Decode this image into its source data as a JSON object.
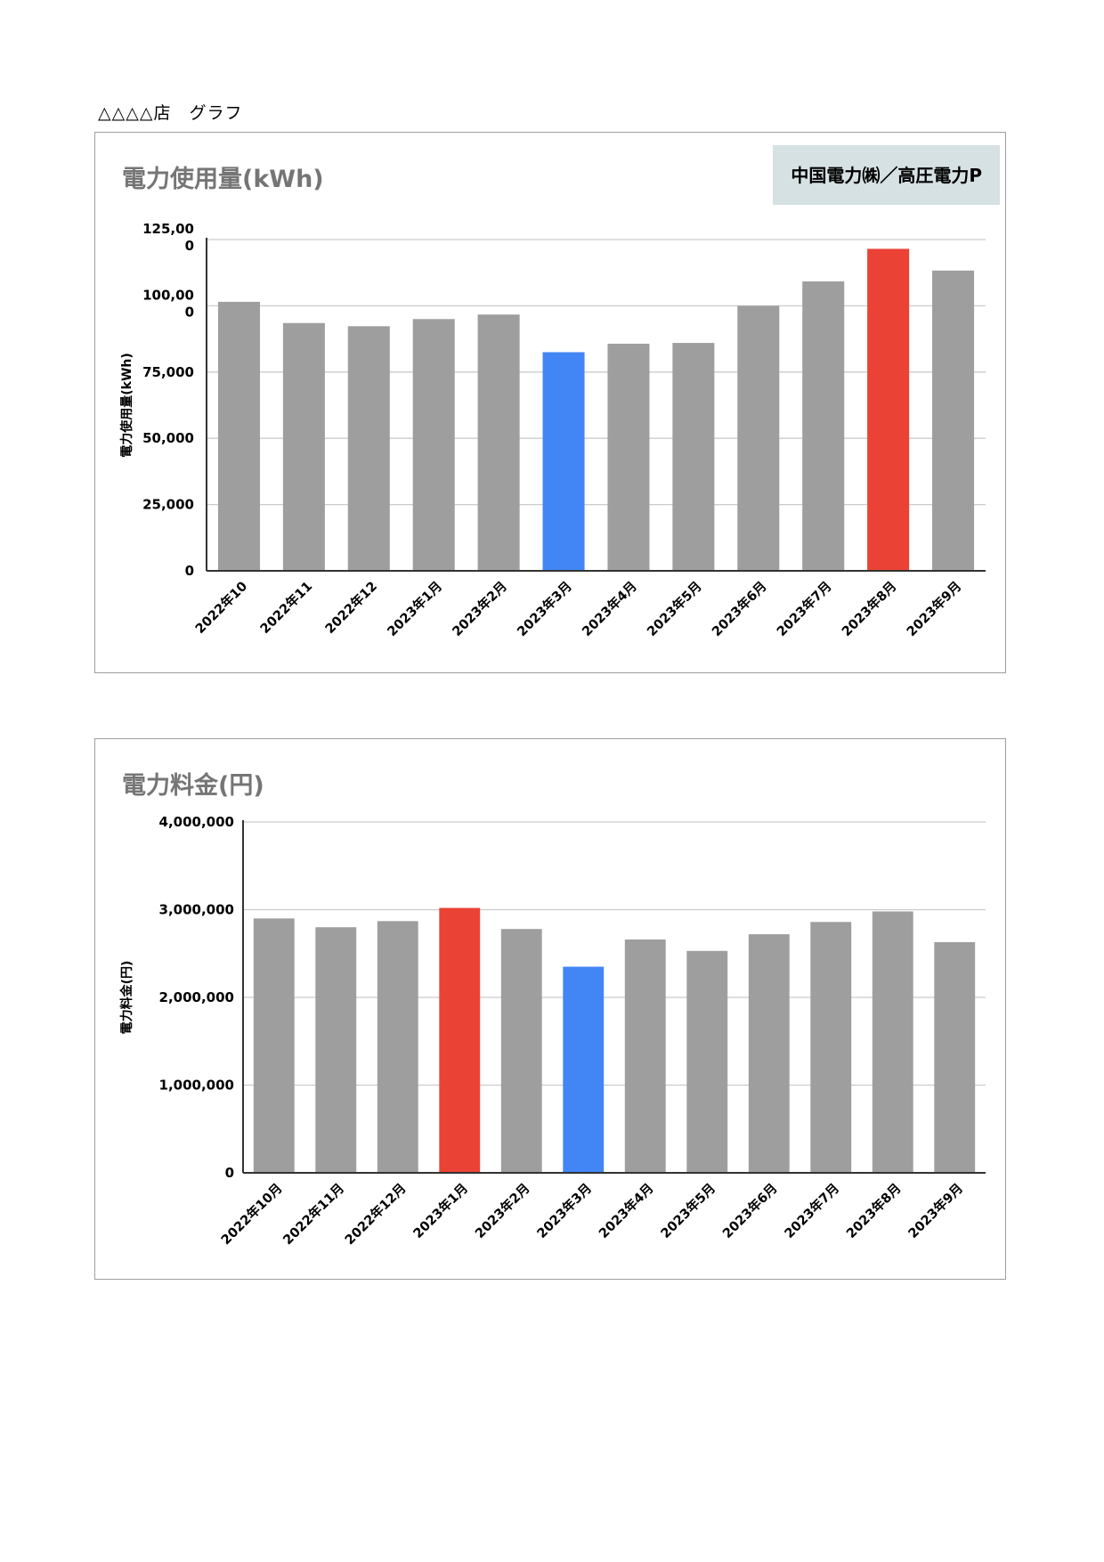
{
  "page": {
    "heading": "△△△△店　グラフ"
  },
  "chart_data": [
    {
      "type": "bar",
      "title": "電力使用量(kWh)",
      "badge": "中国電力㈱／高圧電力P",
      "ylabel": "電力使用量(kWh)",
      "xlabel": "",
      "ylim": [
        0,
        125000
      ],
      "yticks": [
        0,
        25000,
        50000,
        75000,
        100000,
        125000
      ],
      "ytick_labels": [
        "0",
        "25,000",
        "50,000",
        "75,000",
        "100,00\n0",
        "125,00\n0"
      ],
      "grid": true,
      "categories": [
        "2022年10",
        "2022年11",
        "2022年12",
        "2023年1月",
        "2023年2月",
        "2023年3月",
        "2023年4月",
        "2023年5月",
        "2023年6月",
        "2023年7月",
        "2023年8月",
        "2023年9月"
      ],
      "values": [
        101500,
        93500,
        92300,
        95000,
        96700,
        82500,
        85700,
        86000,
        100000,
        109200,
        121500,
        113300
      ],
      "colors": [
        "#9e9e9e",
        "#9e9e9e",
        "#9e9e9e",
        "#9e9e9e",
        "#9e9e9e",
        "#4285f4",
        "#9e9e9e",
        "#9e9e9e",
        "#9e9e9e",
        "#9e9e9e",
        "#ea4335",
        "#9e9e9e"
      ]
    },
    {
      "type": "bar",
      "title": "電力料金(円)",
      "ylabel": "電力料金(円)",
      "xlabel": "",
      "ylim": [
        0,
        4000000
      ],
      "yticks": [
        0,
        1000000,
        2000000,
        3000000,
        4000000
      ],
      "ytick_labels": [
        "0",
        "1,000,000",
        "2,000,000",
        "3,000,000",
        "4,000,000"
      ],
      "grid": true,
      "categories": [
        "2022年10月",
        "2022年11月",
        "2022年12月",
        "2023年1月",
        "2023年2月",
        "2023年3月",
        "2023年4月",
        "2023年5月",
        "2023年6月",
        "2023年7月",
        "2023年8月",
        "2023年9月"
      ],
      "values": [
        2900000,
        2800000,
        2870000,
        3020000,
        2780000,
        2350000,
        2660000,
        2530000,
        2720000,
        2860000,
        2980000,
        2630000
      ],
      "colors": [
        "#9e9e9e",
        "#9e9e9e",
        "#9e9e9e",
        "#ea4335",
        "#9e9e9e",
        "#4285f4",
        "#9e9e9e",
        "#9e9e9e",
        "#9e9e9e",
        "#9e9e9e",
        "#9e9e9e",
        "#9e9e9e"
      ]
    }
  ]
}
